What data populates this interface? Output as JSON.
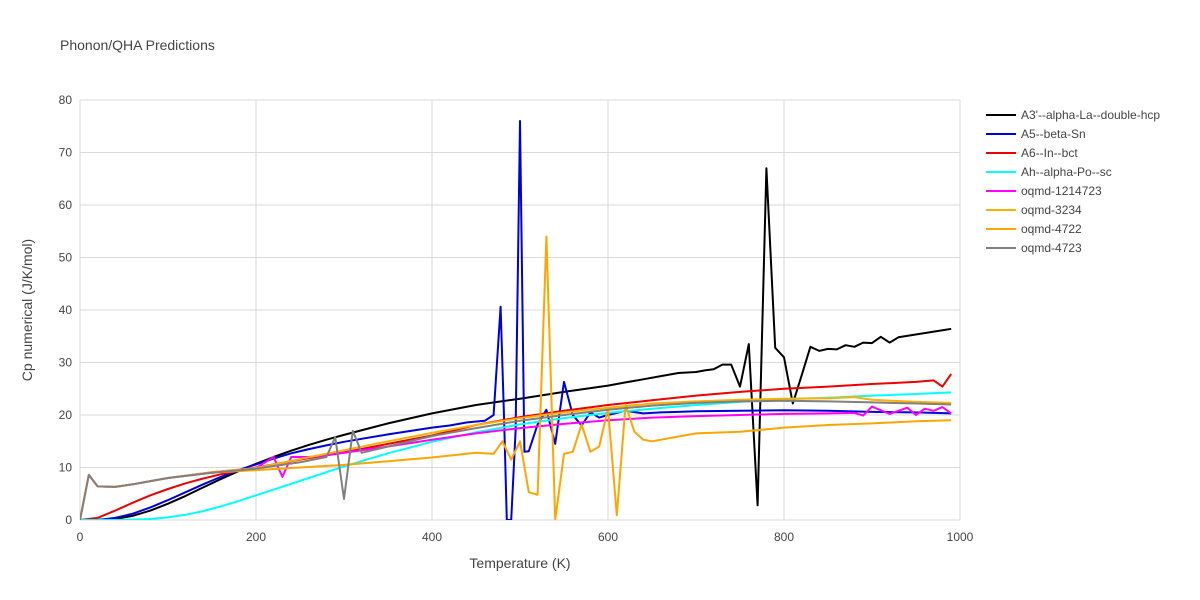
{
  "chart_data": {
    "type": "line",
    "title": "Phonon/QHA Predictions",
    "xlabel": "Temperature (K)",
    "ylabel": "Cp numerical (J/K/mol)",
    "xlim": [
      0,
      1000
    ],
    "ylim": [
      0,
      80
    ],
    "xticks": [
      0,
      200,
      400,
      600,
      800,
      1000
    ],
    "yticks": [
      0,
      10,
      20,
      30,
      40,
      50,
      60,
      70,
      80
    ],
    "grid": true,
    "legend_position": "right",
    "series": [
      {
        "name": "A3'--alpha-La--double-hcp",
        "color": "#000000",
        "x": [
          0,
          20,
          40,
          60,
          80,
          100,
          120,
          140,
          160,
          180,
          200,
          220,
          240,
          260,
          280,
          300,
          350,
          400,
          450,
          500,
          550,
          600,
          610,
          620,
          640,
          660,
          680,
          700,
          710,
          720,
          730,
          740,
          750,
          760,
          770,
          780,
          790,
          800,
          810,
          820,
          830,
          840,
          850,
          860,
          870,
          880,
          890,
          900,
          910,
          920,
          930,
          990
        ],
        "y": [
          0,
          0,
          0.2,
          0.8,
          1.8,
          3.1,
          4.6,
          6.2,
          7.8,
          9.3,
          10.7,
          12.0,
          13.2,
          14.3,
          15.3,
          16.2,
          18.4,
          20.3,
          21.9,
          23.1,
          24.4,
          25.6,
          25.9,
          26.2,
          26.8,
          27.4,
          28.0,
          28.2,
          28.5,
          28.7,
          29.6,
          29.6,
          25.4,
          33.5,
          2.8,
          67.0,
          32.8,
          31.0,
          22.2,
          27.5,
          33.0,
          32.2,
          32.6,
          32.5,
          33.3,
          33.0,
          33.8,
          33.7,
          34.9,
          33.8,
          34.8,
          36.4
        ]
      },
      {
        "name": "A5--beta-Sn",
        "color": "#0000dd",
        "x": [
          0,
          20,
          40,
          60,
          80,
          100,
          120,
          140,
          160,
          180,
          200,
          220,
          240,
          260,
          280,
          300,
          350,
          400,
          420,
          440,
          460,
          470,
          478,
          482,
          485,
          490,
          495,
          500,
          505,
          510,
          520,
          530,
          540,
          550,
          560,
          570,
          580,
          590,
          600,
          620,
          640,
          660,
          680,
          700,
          750,
          800,
          850,
          900,
          950,
          990
        ],
        "y": [
          0,
          0,
          0.4,
          1.2,
          2.4,
          3.8,
          5.3,
          6.8,
          8.2,
          9.5,
          10.6,
          11.7,
          12.7,
          13.5,
          14.2,
          14.9,
          16.3,
          17.6,
          18.0,
          18.6,
          18.9,
          20.0,
          40.6,
          18.5,
          0,
          0,
          17.0,
          76.0,
          13.0,
          13.1,
          18.2,
          21.0,
          14.5,
          26.3,
          20.0,
          18.0,
          20.5,
          19.5,
          20.0,
          20.8,
          20.3,
          20.5,
          20.6,
          20.7,
          20.8,
          20.9,
          20.8,
          20.6,
          20.5,
          20.3
        ]
      },
      {
        "name": "A6--In--bct",
        "color": "#ee0000",
        "x": [
          0,
          20,
          40,
          60,
          80,
          100,
          120,
          140,
          160,
          180,
          200,
          250,
          300,
          350,
          400,
          450,
          500,
          550,
          600,
          650,
          700,
          750,
          800,
          850,
          900,
          950,
          970,
          980,
          990
        ],
        "y": [
          0,
          0.4,
          1.8,
          3.3,
          4.7,
          5.9,
          7.0,
          7.9,
          8.7,
          9.4,
          10.0,
          11.5,
          12.9,
          14.5,
          16.1,
          18.1,
          19.6,
          20.8,
          21.9,
          22.8,
          23.7,
          24.4,
          25.0,
          25.4,
          25.9,
          26.3,
          26.6,
          25.4,
          27.8
        ]
      },
      {
        "name": "Ah--alpha-Po--sc",
        "color": "#00ffff",
        "x": [
          0,
          50,
          80,
          100,
          120,
          140,
          160,
          180,
          200,
          220,
          240,
          260,
          280,
          300,
          350,
          400,
          450,
          500,
          550,
          600,
          650,
          700,
          750,
          800,
          850,
          900,
          950,
          990
        ],
        "y": [
          0,
          0,
          0.2,
          0.5,
          1.0,
          1.7,
          2.6,
          3.6,
          4.7,
          5.8,
          6.9,
          8.0,
          9.1,
          10.2,
          12.7,
          14.9,
          16.7,
          18.2,
          19.4,
          20.4,
          21.2,
          21.9,
          22.5,
          23.0,
          23.3,
          23.7,
          24.0,
          24.3
        ]
      },
      {
        "name": "oqmd-1214723",
        "color": "#ff00ff",
        "x": [
          0,
          10,
          20,
          40,
          60,
          80,
          100,
          150,
          200,
          220,
          230,
          240,
          260,
          280,
          300,
          350,
          400,
          450,
          500,
          550,
          600,
          650,
          700,
          750,
          800,
          850,
          880,
          890,
          900,
          920,
          940,
          950,
          960,
          970,
          980,
          990
        ],
        "y": [
          0,
          8.6,
          6.4,
          6.3,
          6.8,
          7.4,
          8.0,
          9.1,
          9.9,
          12.0,
          8.2,
          12.0,
          12.0,
          12.3,
          12.8,
          14.0,
          15.3,
          16.5,
          17.5,
          18.3,
          19.0,
          19.5,
          19.8,
          20.0,
          20.2,
          20.3,
          20.4,
          19.9,
          21.6,
          20.2,
          21.4,
          20.0,
          21.2,
          20.8,
          21.5,
          20.3
        ]
      },
      {
        "name": "oqmd-3234",
        "color": "#ffb000",
        "x": [
          0,
          10,
          20,
          40,
          60,
          80,
          100,
          150,
          200,
          250,
          300,
          350,
          400,
          450,
          500,
          550,
          600,
          650,
          700,
          750,
          800,
          850,
          880,
          900,
          950,
          990
        ],
        "y": [
          0,
          8.6,
          6.4,
          6.3,
          6.8,
          7.4,
          8.0,
          9.1,
          9.9,
          11.6,
          13.3,
          15.0,
          16.6,
          18.1,
          19.4,
          20.5,
          21.4,
          22.2,
          22.6,
          22.9,
          23.1,
          23.2,
          23.4,
          22.9,
          22.5,
          22.3
        ]
      },
      {
        "name": "oqmd-4722",
        "color": "#ffa500",
        "x": [
          0,
          10,
          20,
          40,
          60,
          80,
          100,
          150,
          200,
          250,
          300,
          350,
          400,
          450,
          470,
          480,
          490,
          500,
          510,
          520,
          530,
          540,
          550,
          560,
          570,
          580,
          590,
          600,
          610,
          620,
          630,
          640,
          650,
          700,
          750,
          800,
          850,
          900,
          950,
          990
        ],
        "y": [
          0,
          8.6,
          6.4,
          6.3,
          6.8,
          7.4,
          8.0,
          9.0,
          9.5,
          10.0,
          10.5,
          11.2,
          11.9,
          12.8,
          12.6,
          15.0,
          11.5,
          15.0,
          5.3,
          4.8,
          54.0,
          0,
          12.6,
          13.0,
          18.2,
          13.0,
          14.0,
          21.3,
          0.9,
          22.0,
          16.8,
          15.3,
          15.0,
          16.5,
          16.8,
          17.6,
          18.1,
          18.4,
          18.8,
          19.0
        ]
      },
      {
        "name": "oqmd-4723",
        "color": "#808080",
        "x": [
          0,
          10,
          20,
          40,
          60,
          80,
          100,
          150,
          200,
          250,
          280,
          290,
          300,
          310,
          320,
          350,
          400,
          450,
          500,
          550,
          600,
          650,
          700,
          750,
          800,
          850,
          900,
          950,
          990
        ],
        "y": [
          0,
          8.6,
          6.4,
          6.3,
          6.8,
          7.4,
          8.0,
          9.0,
          9.8,
          11.0,
          12.0,
          15.8,
          4.0,
          17.0,
          12.8,
          14.0,
          16.0,
          17.5,
          18.9,
          20.0,
          21.0,
          21.8,
          22.3,
          22.6,
          22.7,
          22.6,
          22.4,
          22.2,
          22.0
        ]
      }
    ]
  }
}
